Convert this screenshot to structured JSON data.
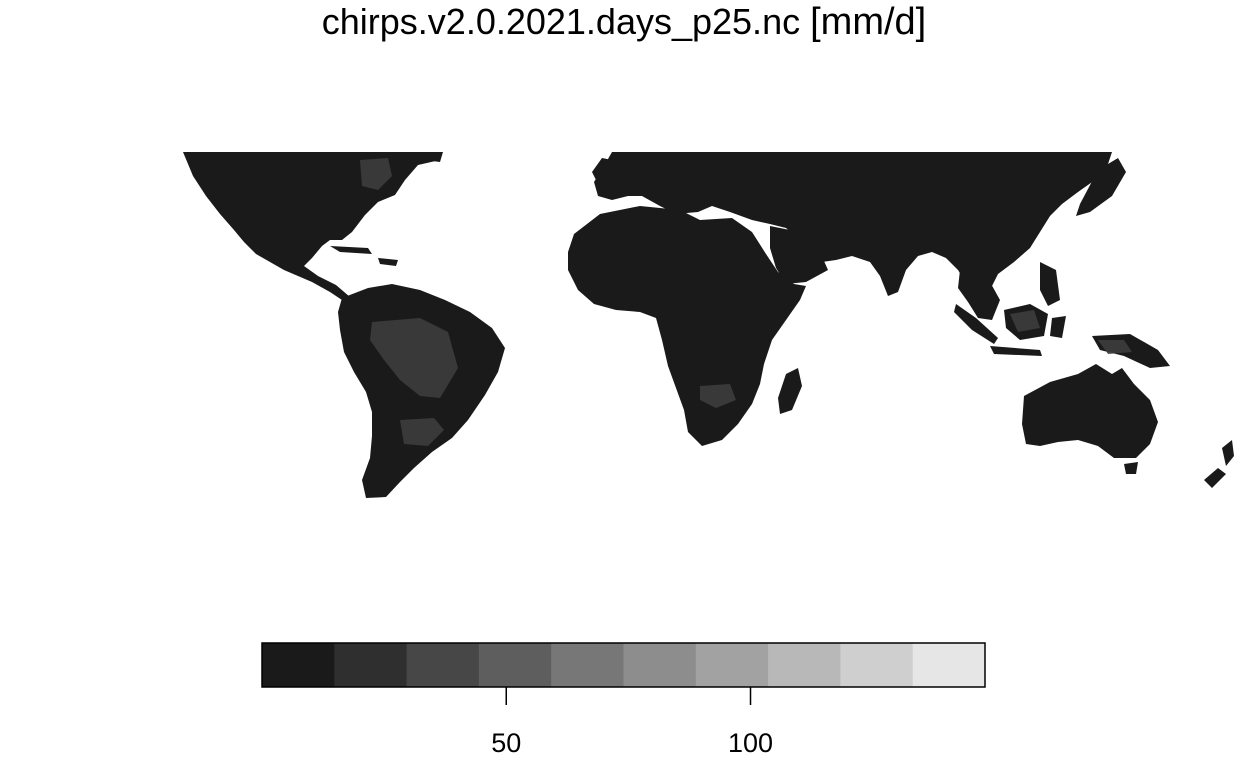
{
  "title": {
    "text": "chirps.v2.0.2021.days_p25.nc",
    "unit": "[mm/d]"
  },
  "map": {
    "land_color": "#1a1a1a",
    "ocean_color": "#ffffff",
    "highlight_color": "#3d3d3d"
  },
  "legend": {
    "bins": [
      "#1a1a1a",
      "#2f2f2f",
      "#474747",
      "#5e5e5e",
      "#777777",
      "#8d8d8d",
      "#a2a2a2",
      "#b8b8b8",
      "#cfcfcf",
      "#e6e6e6"
    ],
    "range": [
      0,
      148
    ],
    "ticks": [
      {
        "value": 50,
        "label": "50"
      },
      {
        "value": 100,
        "label": "100"
      }
    ]
  }
}
